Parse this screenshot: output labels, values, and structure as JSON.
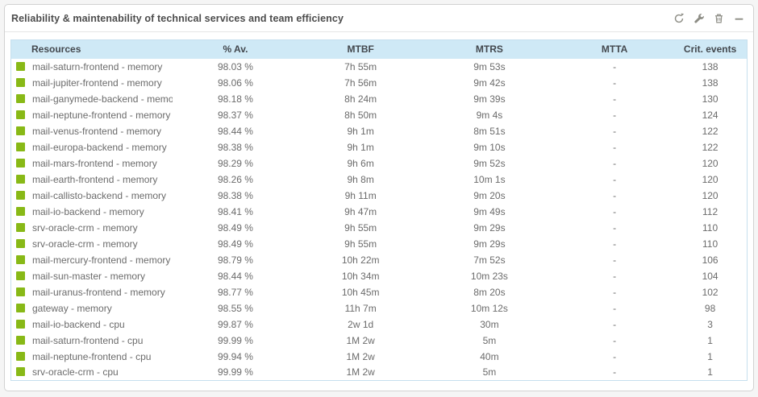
{
  "widget": {
    "title": "Reliability & maintenability of technical services and team efficiency",
    "toolbar_icons": [
      "refresh",
      "wrench",
      "trash",
      "minimize"
    ]
  },
  "colors": {
    "status_ok": "#88b917",
    "header_bg": "#cfe9f6",
    "table_border": "#c6dfee",
    "icon_gray": "#8d8d85"
  },
  "table": {
    "columns": [
      "Resources",
      "% Av.",
      "MTBF",
      "MTRS",
      "MTTA",
      "Crit. events"
    ],
    "rows": [
      {
        "status": "ok",
        "resource": "mail-saturn-frontend - memory",
        "availability": "98.03 %",
        "mtbf": "7h 55m",
        "mtrs": "9m 53s",
        "mtta": "-",
        "crit_events": "138"
      },
      {
        "status": "ok",
        "resource": "mail-jupiter-frontend - memory",
        "availability": "98.06 %",
        "mtbf": "7h 56m",
        "mtrs": "9m 42s",
        "mtta": "-",
        "crit_events": "138"
      },
      {
        "status": "ok",
        "resource": "mail-ganymede-backend - memory",
        "availability": "98.18 %",
        "mtbf": "8h 24m",
        "mtrs": "9m 39s",
        "mtta": "-",
        "crit_events": "130"
      },
      {
        "status": "ok",
        "resource": "mail-neptune-frontend - memory",
        "availability": "98.37 %",
        "mtbf": "8h 50m",
        "mtrs": "9m 4s",
        "mtta": "-",
        "crit_events": "124"
      },
      {
        "status": "ok",
        "resource": "mail-venus-frontend - memory",
        "availability": "98.44 %",
        "mtbf": "9h 1m",
        "mtrs": "8m 51s",
        "mtta": "-",
        "crit_events": "122"
      },
      {
        "status": "ok",
        "resource": "mail-europa-backend - memory",
        "availability": "98.38 %",
        "mtbf": "9h 1m",
        "mtrs": "9m 10s",
        "mtta": "-",
        "crit_events": "122"
      },
      {
        "status": "ok",
        "resource": "mail-mars-frontend - memory",
        "availability": "98.29 %",
        "mtbf": "9h 6m",
        "mtrs": "9m 52s",
        "mtta": "-",
        "crit_events": "120"
      },
      {
        "status": "ok",
        "resource": "mail-earth-frontend - memory",
        "availability": "98.26 %",
        "mtbf": "9h 8m",
        "mtrs": "10m 1s",
        "mtta": "-",
        "crit_events": "120"
      },
      {
        "status": "ok",
        "resource": "mail-callisto-backend - memory",
        "availability": "98.38 %",
        "mtbf": "9h 11m",
        "mtrs": "9m 20s",
        "mtta": "-",
        "crit_events": "120"
      },
      {
        "status": "ok",
        "resource": "mail-io-backend - memory",
        "availability": "98.41 %",
        "mtbf": "9h 47m",
        "mtrs": "9m 49s",
        "mtta": "-",
        "crit_events": "112"
      },
      {
        "status": "ok",
        "resource": "srv-oracle-crm - memory",
        "availability": "98.49 %",
        "mtbf": "9h 55m",
        "mtrs": "9m 29s",
        "mtta": "-",
        "crit_events": "110"
      },
      {
        "status": "ok",
        "resource": "srv-oracle-crm - memory",
        "availability": "98.49 %",
        "mtbf": "9h 55m",
        "mtrs": "9m 29s",
        "mtta": "-",
        "crit_events": "110"
      },
      {
        "status": "ok",
        "resource": "mail-mercury-frontend - memory",
        "availability": "98.79 %",
        "mtbf": "10h 22m",
        "mtrs": "7m 52s",
        "mtta": "-",
        "crit_events": "106"
      },
      {
        "status": "ok",
        "resource": "mail-sun-master - memory",
        "availability": "98.44 %",
        "mtbf": "10h 34m",
        "mtrs": "10m 23s",
        "mtta": "-",
        "crit_events": "104"
      },
      {
        "status": "ok",
        "resource": "mail-uranus-frontend - memory",
        "availability": "98.77 %",
        "mtbf": "10h 45m",
        "mtrs": "8m 20s",
        "mtta": "-",
        "crit_events": "102"
      },
      {
        "status": "ok",
        "resource": "gateway - memory",
        "availability": "98.55 %",
        "mtbf": "11h 7m",
        "mtrs": "10m 12s",
        "mtta": "-",
        "crit_events": "98"
      },
      {
        "status": "ok",
        "resource": "mail-io-backend - cpu",
        "availability": "99.87 %",
        "mtbf": "2w 1d",
        "mtrs": "30m",
        "mtta": "-",
        "crit_events": "3"
      },
      {
        "status": "ok",
        "resource": "mail-saturn-frontend - cpu",
        "availability": "99.99 %",
        "mtbf": "1M 2w",
        "mtrs": "5m",
        "mtta": "-",
        "crit_events": "1"
      },
      {
        "status": "ok",
        "resource": "mail-neptune-frontend - cpu",
        "availability": "99.94 %",
        "mtbf": "1M 2w",
        "mtrs": "40m",
        "mtta": "-",
        "crit_events": "1"
      },
      {
        "status": "ok",
        "resource": "srv-oracle-crm - cpu",
        "availability": "99.99 %",
        "mtbf": "1M 2w",
        "mtrs": "5m",
        "mtta": "-",
        "crit_events": "1"
      }
    ]
  }
}
